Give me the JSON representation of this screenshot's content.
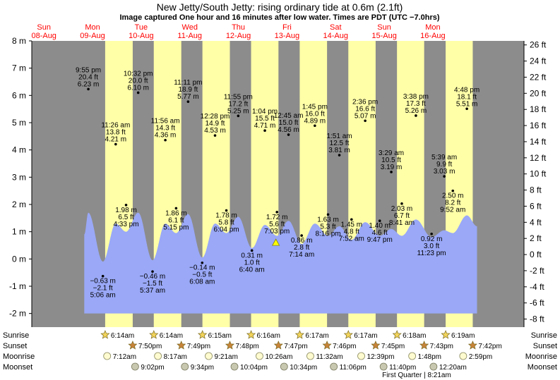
{
  "title": "New Jetty/South Jetty: rising  ordinary tide at 0.6m (2.1ft)",
  "subtitle": "Image captured One hour and 16 minutes after low water. Times are PDT (UTC −7.0hrs)",
  "colors": {
    "day": "#ffffa8",
    "night": "#8c8c8c",
    "water": "#9aa8f7",
    "day_label": "#ff0000"
  },
  "chart_data": {
    "type": "area",
    "xlim_hours": [
      -6,
      237
    ],
    "ylim_m": [
      -2.5,
      8
    ],
    "ylim_ft": [
      -9,
      26.5
    ],
    "left_ticks": [
      "-2 m",
      "-1 m",
      "0 m",
      "1 m",
      "2 m",
      "3 m",
      "4 m",
      "5 m",
      "6 m",
      "7 m",
      "8 m"
    ],
    "left_tick_values": [
      -2,
      -1,
      0,
      1,
      2,
      3,
      4,
      5,
      6,
      7,
      8
    ],
    "right_ticks": [
      "-8 ft",
      "-6 ft",
      "-4 ft",
      "-2 ft",
      "0 ft",
      "2 ft",
      "4 ft",
      "6 ft",
      "8 ft",
      "10 ft",
      "12 ft",
      "14 ft",
      "16 ft",
      "18 ft",
      "20 ft",
      "22 ft",
      "24 ft",
      "26 ft"
    ],
    "right_tick_values": [
      -8,
      -6,
      -4,
      -2,
      0,
      2,
      4,
      6,
      8,
      10,
      12,
      14,
      16,
      18,
      20,
      22,
      24,
      26
    ],
    "days": [
      {
        "dow": "Sun",
        "date": "08-Aug",
        "hour": 0
      },
      {
        "dow": "Mon",
        "date": "09-Aug",
        "hour": 24
      },
      {
        "dow": "Tue",
        "date": "10-Aug",
        "hour": 48
      },
      {
        "dow": "Wed",
        "date": "11-Aug",
        "hour": 72
      },
      {
        "dow": "Thu",
        "date": "12-Aug",
        "hour": 96
      },
      {
        "dow": "Fri",
        "date": "13-Aug",
        "hour": 120
      },
      {
        "dow": "Sat",
        "date": "14-Aug",
        "hour": 144
      },
      {
        "dow": "Sun",
        "date": "15-Aug",
        "hour": 168
      },
      {
        "dow": "Mon",
        "date": "16-Aug",
        "hour": 192
      }
    ],
    "daylight": [
      {
        "rise": 30.23,
        "set": 43.83
      },
      {
        "rise": 54.23,
        "set": 67.82
      },
      {
        "rise": 78.25,
        "set": 91.8
      },
      {
        "rise": 102.27,
        "set": 115.78
      },
      {
        "rise": 126.28,
        "set": 139.77
      },
      {
        "rise": 150.28,
        "set": 163.75
      },
      {
        "rise": 174.3,
        "set": 187.72
      },
      {
        "rise": 198.32,
        "set": 211.7
      }
    ],
    "tide_series": [
      {
        "t": "9:55 pm",
        "ft": "20.4 ft",
        "m": "6.23 m",
        "hour": 21.92,
        "value": 1.7,
        "label_pos": "above"
      },
      {
        "t": "5:06 am",
        "ft": "−2.1 ft",
        "m": "−0.63 m",
        "hour": 29.1,
        "value": -0.1,
        "label_pos": "below"
      },
      {
        "t": "11:26 am",
        "ft": "13.8 ft",
        "m": "4.21 m",
        "hour": 35.43,
        "value": 1.3,
        "label_pos": "above"
      },
      {
        "t": "4:33 pm",
        "ft": "6.5 ft",
        "m": "1.98 m",
        "hour": 40.55,
        "value": 1.0,
        "label_pos": "below"
      },
      {
        "t": "10:32 pm",
        "ft": "20.0 ft",
        "m": "6.10 m",
        "hour": 46.53,
        "value": 1.7,
        "label_pos": "above"
      },
      {
        "t": "5:37 am",
        "ft": "−1.5 ft",
        "m": "−0.46 m",
        "hour": 53.62,
        "value": -0.05,
        "label_pos": "below"
      },
      {
        "t": "11:56 am",
        "ft": "14.3 ft",
        "m": "4.36 m",
        "hour": 59.93,
        "value": 1.3,
        "label_pos": "above"
      },
      {
        "t": "5:15 pm",
        "ft": "6.1 ft",
        "m": "1.86 m",
        "hour": 65.25,
        "value": 0.95,
        "label_pos": "below"
      },
      {
        "t": "11:11 pm",
        "ft": "18.9 ft",
        "m": "5.77 m",
        "hour": 71.18,
        "value": 1.65,
        "label_pos": "above"
      },
      {
        "t": "6:08 am",
        "ft": "−0.5 ft",
        "m": "−0.14 m",
        "hour": 78.13,
        "value": 0.05,
        "label_pos": "below"
      },
      {
        "t": "12:28 pm",
        "ft": "14.9 ft",
        "m": "4.53 m",
        "hour": 84.47,
        "value": 1.3,
        "label_pos": "above"
      },
      {
        "t": "6:04 pm",
        "ft": "5.8 ft",
        "m": "1.78 m",
        "hour": 90.07,
        "value": 0.95,
        "label_pos": "below"
      },
      {
        "t": "11:55 pm",
        "ft": "17.2 ft",
        "m": "5.25 m",
        "hour": 95.92,
        "value": 1.55,
        "label_pos": "above"
      },
      {
        "t": "6:40 am",
        "ft": "1.0 ft",
        "m": "0.31 m",
        "hour": 102.67,
        "value": 0.4,
        "label_pos": "below"
      },
      {
        "t": "1:04 pm",
        "ft": "15.5 ft",
        "m": "4.71 m",
        "hour": 109.07,
        "value": 1.25,
        "label_pos": "above"
      },
      {
        "t": "7:03 pm",
        "ft": "5.6 ft",
        "m": "1.72 m",
        "hour": 115.05,
        "value": 0.85,
        "label_pos": "below"
      },
      {
        "t": "12:45 am",
        "ft": "15.0 ft",
        "m": "4.56 m",
        "hour": 120.75,
        "value": 1.4,
        "label_pos": "above"
      },
      {
        "t": "7:14 am",
        "ft": "2.8 ft",
        "m": "0.86 m",
        "hour": 127.23,
        "value": 0.55,
        "label_pos": "below"
      },
      {
        "t": "1:45 pm",
        "ft": "16.0 ft",
        "m": "4.89 m",
        "hour": 133.75,
        "value": 1.3,
        "label_pos": "above"
      },
      {
        "t": "8:16 pm",
        "ft": "5.3 ft",
        "m": "1.63 m",
        "hour": 140.27,
        "value": 0.85,
        "label_pos": "below"
      },
      {
        "t": "1:51 am",
        "ft": "12.5 ft",
        "m": "3.81 m",
        "hour": 145.85,
        "value": 1.2,
        "label_pos": "above"
      },
      {
        "t": "7:52 am",
        "ft": "4.8 ft",
        "m": "1.45 m",
        "hour": 151.87,
        "value": 0.7,
        "label_pos": "below"
      },
      {
        "t": "2:36 pm",
        "ft": "16.6 ft",
        "m": "5.07 m",
        "hour": 158.6,
        "value": 1.35,
        "label_pos": "above"
      },
      {
        "t": "9:47 pm",
        "ft": "4.6 ft",
        "m": "1.40 m",
        "hour": 165.78,
        "value": 0.85,
        "label_pos": "below"
      },
      {
        "t": "3:29 am",
        "ft": "10.5 ft",
        "m": "3.19 m",
        "hour": 171.48,
        "value": 1.1,
        "label_pos": "above"
      },
      {
        "t": "8:41 am",
        "ft": "6.7 ft",
        "m": "2.03 m",
        "hour": 176.68,
        "value": 0.85,
        "label_pos": "below"
      },
      {
        "t": "3:38 pm",
        "ft": "17.3 ft",
        "m": "5.26 m",
        "hour": 183.63,
        "value": 1.45,
        "label_pos": "above"
      },
      {
        "t": "11:23 pm",
        "ft": "3.0 ft",
        "m": "0.92 m",
        "hour": 191.38,
        "value": 0.8,
        "label_pos": "below"
      },
      {
        "t": "5:39 am",
        "ft": "9.9 ft",
        "m": "3.03 m",
        "hour": 197.65,
        "value": 1.05,
        "label_pos": "above"
      },
      {
        "t": "9:52 am",
        "ft": "8.2 ft",
        "m": "2.50 m",
        "hour": 201.87,
        "value": 0.95,
        "label_pos": "below"
      },
      {
        "t": "4:48 pm",
        "ft": "18.1 ft",
        "m": "5.51 m",
        "hour": 208.8,
        "value": 1.6,
        "label_pos": "above"
      }
    ],
    "label_layout": [
      {
        "y": 6.23
      },
      {
        "y": -0.63
      },
      {
        "y": 4.21
      },
      {
        "y": 1.98
      },
      {
        "y": 6.1
      },
      {
        "y": -0.46
      },
      {
        "y": 4.36
      },
      {
        "y": 1.86
      },
      {
        "y": 5.77
      },
      {
        "y": -0.14
      },
      {
        "y": 4.53
      },
      {
        "y": 1.78
      },
      {
        "y": 5.25
      },
      {
        "y": 0.31
      },
      {
        "y": 4.71
      },
      {
        "y": 1.72
      },
      {
        "y": 4.56
      },
      {
        "y": 0.86
      },
      {
        "y": 4.89
      },
      {
        "y": 1.63
      },
      {
        "y": 3.81
      },
      {
        "y": 1.45
      },
      {
        "y": 5.07
      },
      {
        "y": 1.4
      },
      {
        "y": 3.19
      },
      {
        "y": 2.03
      },
      {
        "y": 5.26
      },
      {
        "y": 0.92
      },
      {
        "y": 3.03
      },
      {
        "y": 2.5
      },
      {
        "y": 5.51
      }
    ],
    "current": {
      "hour": 114.5,
      "value": 0.6
    }
  },
  "rows": {
    "sunrise_label": "Sunrise",
    "sunset_label": "Sunset",
    "moonrise_label": "Moonrise",
    "moonset_label": "Moonset",
    "sunrise": [
      {
        "hour": 30.23,
        "text": "6:14am"
      },
      {
        "hour": 54.23,
        "text": "6:14am"
      },
      {
        "hour": 78.25,
        "text": "6:15am"
      },
      {
        "hour": 102.27,
        "text": "6:16am"
      },
      {
        "hour": 126.28,
        "text": "6:17am"
      },
      {
        "hour": 150.28,
        "text": "6:17am"
      },
      {
        "hour": 174.3,
        "text": "6:18am"
      },
      {
        "hour": 198.32,
        "text": "6:19am"
      }
    ],
    "sunset": [
      {
        "hour": 43.83,
        "text": "7:50pm"
      },
      {
        "hour": 67.82,
        "text": "7:49pm"
      },
      {
        "hour": 91.8,
        "text": "7:48pm"
      },
      {
        "hour": 115.78,
        "text": "7:47pm"
      },
      {
        "hour": 139.77,
        "text": "7:46pm"
      },
      {
        "hour": 163.75,
        "text": "7:45pm"
      },
      {
        "hour": 187.72,
        "text": "7:43pm"
      },
      {
        "hour": 211.7,
        "text": "7:42pm"
      }
    ],
    "moonrise": [
      {
        "hour": 31.2,
        "text": "7:12am"
      },
      {
        "hour": 56.28,
        "text": "8:17am"
      },
      {
        "hour": 81.35,
        "text": "9:21am"
      },
      {
        "hour": 106.43,
        "text": "10:26am"
      },
      {
        "hour": 131.53,
        "text": "11:32am"
      },
      {
        "hour": 156.65,
        "text": "12:39pm"
      },
      {
        "hour": 181.8,
        "text": "1:48pm"
      },
      {
        "hour": 206.98,
        "text": "2:59pm"
      }
    ],
    "moonset": [
      {
        "hour": 45.03,
        "text": "9:02pm"
      },
      {
        "hour": 69.57,
        "text": "9:34pm"
      },
      {
        "hour": 94.07,
        "text": "10:04pm"
      },
      {
        "hour": 118.57,
        "text": "10:34pm"
      },
      {
        "hour": 143.1,
        "text": "11:06pm"
      },
      {
        "hour": 167.67,
        "text": "11:40pm"
      },
      {
        "hour": 192.33,
        "text": "12:20am"
      }
    ],
    "moon_phase": "First Quarter | 8:21am"
  }
}
